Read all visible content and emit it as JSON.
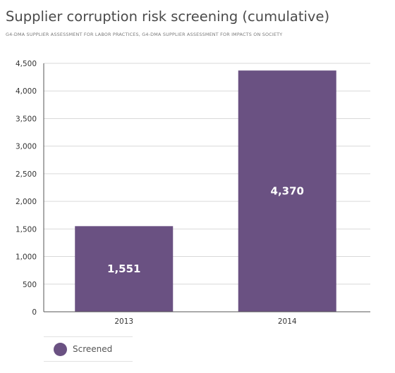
{
  "chart_data": {
    "type": "bar",
    "title": "Supplier corruption risk screening (cumulative)",
    "subtitle": "G4-DMA SUPPLIER ASSESSMENT FOR LABOR PRACTICES, G4-DMA SUPPLIER ASSESSMENT FOR IMPACTS ON SOCIETY",
    "xlabel": "",
    "ylabel": "",
    "categories": [
      "2013",
      "2014"
    ],
    "series": [
      {
        "name": "Screened",
        "values": [
          1551,
          4370
        ],
        "data_labels": [
          "1,551",
          "4,370"
        ]
      }
    ],
    "ylim": [
      0,
      4500
    ],
    "yticks": [
      0,
      500,
      1000,
      1500,
      2000,
      2500,
      3000,
      3500,
      4000,
      4500
    ],
    "ytick_labels": [
      "0",
      "500",
      "1,000",
      "1,500",
      "2,000",
      "2,500",
      "3,000",
      "3,500",
      "4,000",
      "4,500"
    ],
    "grid": true,
    "legend_position": "bottom-left",
    "colors": {
      "bar": "#6a5182",
      "grid": "#d9d9d9",
      "axis": "#555555"
    }
  }
}
